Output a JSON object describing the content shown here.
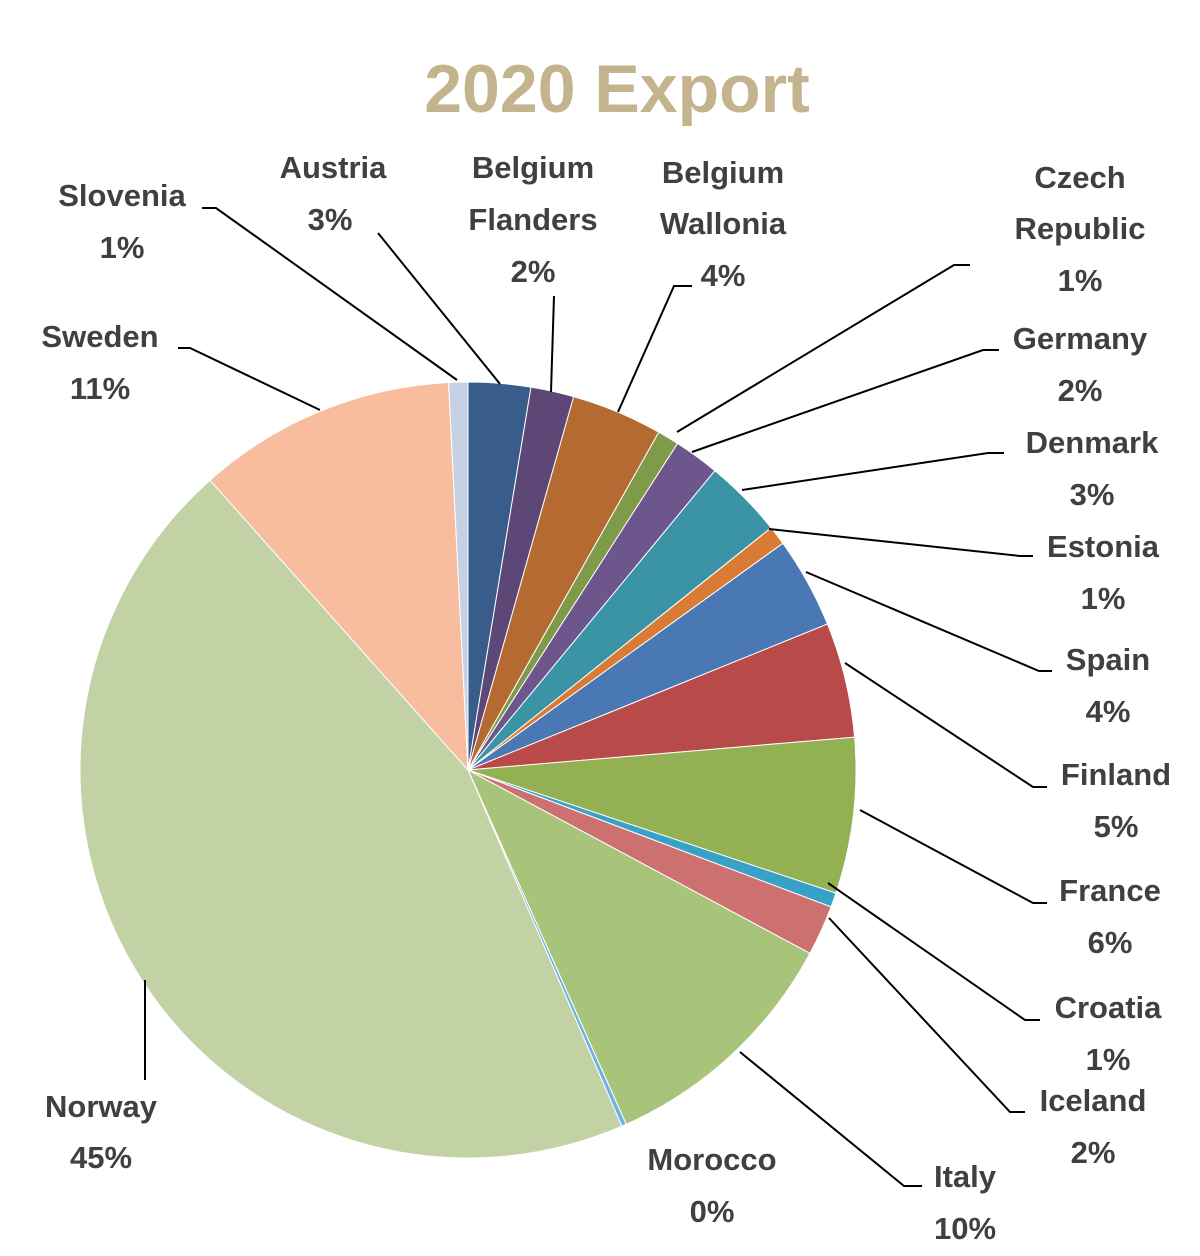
{
  "chart_data": {
    "type": "pie",
    "title": "2020 Export",
    "slices": [
      {
        "name": "Austria",
        "label": "3%",
        "value": 2.6,
        "color": "#385d8a"
      },
      {
        "name": "Belgium Flanders",
        "label": "2%",
        "value": 1.8,
        "color": "#5c4776"
      },
      {
        "name": "Belgium Wallonia",
        "label": "4%",
        "value": 3.8,
        "color": "#b46a30"
      },
      {
        "name": "Czech Republic",
        "label": "1%",
        "value": 0.9,
        "color": "#7f9a48"
      },
      {
        "name": "Germany",
        "label": "2%",
        "value": 1.9,
        "color": "#6d568c"
      },
      {
        "name": "Denmark",
        "label": "3%",
        "value": 3.3,
        "color": "#3b93a6"
      },
      {
        "name": "Estonia",
        "label": "1%",
        "value": 0.8,
        "color": "#d97b34"
      },
      {
        "name": "Spain",
        "label": "4%",
        "value": 3.8,
        "color": "#4a78b4"
      },
      {
        "name": "Finland",
        "label": "5%",
        "value": 4.8,
        "color": "#b84b4a"
      },
      {
        "name": "France",
        "label": "6%",
        "value": 6.5,
        "color": "#93b152"
      },
      {
        "name": "Croatia",
        "label": "1%",
        "value": 0.6,
        "color": "#38a1c8"
      },
      {
        "name": "Iceland",
        "label": "2%",
        "value": 2.1,
        "color": "#cc7070"
      },
      {
        "name": "Italy",
        "label": "10%",
        "value": 10.5,
        "color": "#a8c47a"
      },
      {
        "name": "Morocco",
        "label": "0%",
        "value": 0.2,
        "color": "#6fb3e0"
      },
      {
        "name": "Norway",
        "label": "45%",
        "value": 45.0,
        "color": "#c2d2a5"
      },
      {
        "name": "Sweden",
        "label": "11%",
        "value": 10.8,
        "color": "#f8bd9e"
      },
      {
        "name": "Slovenia",
        "label": "1%",
        "value": 0.8,
        "color": "#c6d1e3"
      }
    ]
  }
}
